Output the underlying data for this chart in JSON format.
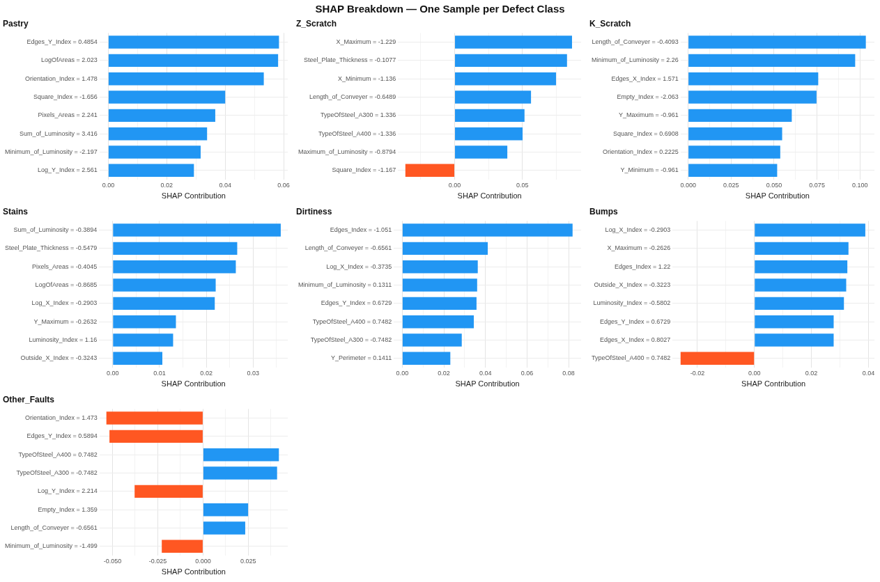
{
  "chart_data": [
    {
      "type": "other",
      "title": "SHAP Breakdown — One Sample per Defect Class"
    },
    {
      "type": "bar",
      "orientation": "horizontal",
      "title": "Pastry",
      "xlabel": "SHAP Contribution",
      "grid": true,
      "categories": [
        "Edges_Y_Index = 0.4854",
        "LogOfAreas = 2.023",
        "Orientation_Index = 1.478",
        "Square_Index = -1.656",
        "Pixels_Areas = 2.241",
        "Sum_of_Luminosity = 3.416",
        "Minimum_of_Luminosity = -2.197",
        "Log_Y_Index = 2.561"
      ],
      "values": [
        0.0584,
        0.0581,
        0.0532,
        0.04,
        0.0366,
        0.0338,
        0.0316,
        0.0293
      ],
      "colors": [
        "#2196f3",
        "#2196f3",
        "#2196f3",
        "#2196f3",
        "#2196f3",
        "#2196f3",
        "#2196f3",
        "#2196f3"
      ],
      "xlim": [
        -0.003,
        0.0614
      ],
      "xticks": [
        {
          "value": 0,
          "label": "0.00"
        },
        {
          "value": 0.01,
          "label": null
        },
        {
          "value": 0.02,
          "label": "0.02"
        },
        {
          "value": 0.03,
          "label": null
        },
        {
          "value": 0.04,
          "label": "0.04"
        },
        {
          "value": 0.05,
          "label": null
        },
        {
          "value": 0.06,
          "label": "0.06"
        }
      ]
    },
    {
      "type": "bar",
      "orientation": "horizontal",
      "title": "Z_Scratch",
      "xlabel": "SHAP Contribution",
      "grid": true,
      "categories": [
        "X_Maximum = -1.229",
        "Steel_Plate_Thickness = -0.1077",
        "X_Minimum = -1.136",
        "Length_of_Conveyer = -0.6489",
        "TypeOfSteel_A300 = 1.336",
        "TypeOfSteel_A400 = -1.336",
        "Maximum_of_Luminosity = -0.8794",
        "Square_Index = -1.167"
      ],
      "values": [
        0.0867,
        0.083,
        0.0749,
        0.0564,
        0.0516,
        0.0502,
        0.0389,
        -0.0364
      ],
      "colors": [
        "#2196f3",
        "#2196f3",
        "#2196f3",
        "#2196f3",
        "#2196f3",
        "#2196f3",
        "#2196f3",
        "#ff5722"
      ],
      "xlim": [
        -0.0418,
        0.0934
      ],
      "xticks": [
        {
          "value": -0.025,
          "label": null
        },
        {
          "value": 0,
          "label": "0.00"
        },
        {
          "value": 0.025,
          "label": null
        },
        {
          "value": 0.05,
          "label": "0.05"
        },
        {
          "value": 0.075,
          "label": null
        }
      ]
    },
    {
      "type": "bar",
      "orientation": "horizontal",
      "title": "K_Scratch",
      "xlabel": "SHAP Contribution",
      "grid": true,
      "categories": [
        "Length_of_Conveyer = -0.4093",
        "Minimum_of_Luminosity = 2.26",
        "Edges_X_Index = 1.571",
        "Empty_Index = -2.063",
        "Y_Maximum = -0.961",
        "Square_Index = 0.6908",
        "Orientation_Index = 0.2225",
        "Y_Minimum = -0.961"
      ],
      "values": [
        0.1034,
        0.0972,
        0.0757,
        0.0747,
        0.0603,
        0.0547,
        0.0536,
        0.0518
      ],
      "colors": [
        "#2196f3",
        "#2196f3",
        "#2196f3",
        "#2196f3",
        "#2196f3",
        "#2196f3",
        "#2196f3",
        "#2196f3"
      ],
      "xlim": [
        -0.0044,
        0.1084
      ],
      "xticks": [
        {
          "value": 0,
          "label": "0.000"
        },
        {
          "value": 0.0125,
          "label": null
        },
        {
          "value": 0.025,
          "label": "0.025"
        },
        {
          "value": 0.0375,
          "label": null
        },
        {
          "value": 0.05,
          "label": "0.050"
        },
        {
          "value": 0.0625,
          "label": null
        },
        {
          "value": 0.075,
          "label": "0.075"
        },
        {
          "value": 0.0875,
          "label": null
        },
        {
          "value": 0.1,
          "label": "0.100"
        }
      ]
    },
    {
      "type": "bar",
      "orientation": "horizontal",
      "title": "Stains",
      "xlabel": "SHAP Contribution",
      "grid": true,
      "categories": [
        "Sum_of_Luminosity = -0.3894",
        "Steel_Plate_Thickness = -0.5479",
        "Pixels_Areas = -0.4045",
        "LogOfAreas = -0.8685",
        "Log_X_Index = -0.2903",
        "Y_Maximum = -0.2632",
        "Luminosity_Index = 1.16",
        "Outside_X_Index = -0.3243"
      ],
      "values": [
        0.0359,
        0.0266,
        0.0263,
        0.022,
        0.0218,
        0.0135,
        0.0129,
        0.0106
      ],
      "colors": [
        "#2196f3",
        "#2196f3",
        "#2196f3",
        "#2196f3",
        "#2196f3",
        "#2196f3",
        "#2196f3",
        "#2196f3"
      ],
      "xlim": [
        -0.0029,
        0.0374
      ],
      "xticks": [
        {
          "value": 0,
          "label": "0.00"
        },
        {
          "value": 0.005,
          "label": null
        },
        {
          "value": 0.01,
          "label": "0.01"
        },
        {
          "value": 0.015,
          "label": null
        },
        {
          "value": 0.02,
          "label": "0.02"
        },
        {
          "value": 0.025,
          "label": null
        },
        {
          "value": 0.03,
          "label": "0.03"
        },
        {
          "value": 0.035,
          "label": null
        }
      ]
    },
    {
      "type": "bar",
      "orientation": "horizontal",
      "title": "Dirtiness",
      "xlabel": "SHAP Contribution",
      "grid": true,
      "categories": [
        "Edges_Index = -1.051",
        "Length_of_Conveyer = -0.6561",
        "Log_X_Index = -0.3735",
        "Minimum_of_Luminosity = 0.1311",
        "Edges_Y_Index = 0.6729",
        "TypeOfSteel_A400 = 0.7482",
        "TypeOfSteel_A300 = -0.7482",
        "Y_Perimeter = 0.1411"
      ],
      "values": [
        0.0819,
        0.0411,
        0.0363,
        0.036,
        0.0357,
        0.0344,
        0.0286,
        0.0231
      ],
      "colors": [
        "#2196f3",
        "#2196f3",
        "#2196f3",
        "#2196f3",
        "#2196f3",
        "#2196f3",
        "#2196f3",
        "#2196f3"
      ],
      "xlim": [
        -0.0041,
        0.086
      ],
      "xticks": [
        {
          "value": 0,
          "label": "0.00"
        },
        {
          "value": 0.01,
          "label": null
        },
        {
          "value": 0.02,
          "label": "0.02"
        },
        {
          "value": 0.03,
          "label": null
        },
        {
          "value": 0.04,
          "label": "0.04"
        },
        {
          "value": 0.05,
          "label": null
        },
        {
          "value": 0.06,
          "label": "0.06"
        },
        {
          "value": 0.07,
          "label": null
        },
        {
          "value": 0.08,
          "label": "0.08"
        }
      ]
    },
    {
      "type": "bar",
      "orientation": "horizontal",
      "title": "Bumps",
      "xlabel": "SHAP Contribution",
      "grid": true,
      "categories": [
        "Log_X_Index = -0.2903",
        "X_Maximum = -0.2626",
        "Edges_Index = 1.22",
        "Outside_X_Index = -0.3223",
        "Luminosity_Index = -0.5802",
        "Edges_Y_Index = 0.6729",
        "Edges_X_Index = 0.8027",
        "TypeOfSteel_A400 = 0.7482"
      ],
      "values": [
        0.0389,
        0.033,
        0.0326,
        0.0322,
        0.0314,
        0.0278,
        0.0278,
        -0.0259
      ],
      "colors": [
        "#2196f3",
        "#2196f3",
        "#2196f3",
        "#2196f3",
        "#2196f3",
        "#2196f3",
        "#2196f3",
        "#ff5722"
      ],
      "xlim": [
        -0.0287,
        0.0421
      ],
      "xticks": [
        {
          "value": -0.02,
          "label": "-0.02"
        },
        {
          "value": -0.01,
          "label": null
        },
        {
          "value": 0,
          "label": "0.00"
        },
        {
          "value": 0.01,
          "label": null
        },
        {
          "value": 0.02,
          "label": "0.02"
        },
        {
          "value": 0.03,
          "label": null
        },
        {
          "value": 0.04,
          "label": "0.04"
        }
      ]
    },
    {
      "type": "bar",
      "orientation": "horizontal",
      "title": "Other_Faults",
      "xlabel": "SHAP Contribution",
      "grid": true,
      "categories": [
        "Orientation_Index = 1.473",
        "Edges_Y_Index = 0.5894",
        "TypeOfSteel_A400 = 0.7482",
        "TypeOfSteel_A300 = -0.7482",
        "Log_Y_Index = 2.214",
        "Empty_Index = 1.359",
        "Length_of_Conveyer = -0.6561",
        "Minimum_of_Luminosity = -1.499"
      ],
      "values": [
        -0.0534,
        -0.0517,
        0.0419,
        0.0409,
        -0.0378,
        0.0249,
        0.0233,
        -0.0228
      ],
      "colors": [
        "#ff5722",
        "#ff5722",
        "#2196f3",
        "#2196f3",
        "#ff5722",
        "#2196f3",
        "#2196f3",
        "#ff5722"
      ],
      "xlim": [
        -0.0572,
        0.0468
      ],
      "xticks": [
        {
          "value": -0.05,
          "label": "-0.050"
        },
        {
          "value": -0.0375,
          "label": null
        },
        {
          "value": -0.025,
          "label": "-0.025"
        },
        {
          "value": -0.0125,
          "label": null
        },
        {
          "value": 0,
          "label": "0.000"
        },
        {
          "value": 0.0125,
          "label": null
        },
        {
          "value": 0.025,
          "label": "0.025"
        },
        {
          "value": 0.0375,
          "label": null
        }
      ]
    }
  ]
}
